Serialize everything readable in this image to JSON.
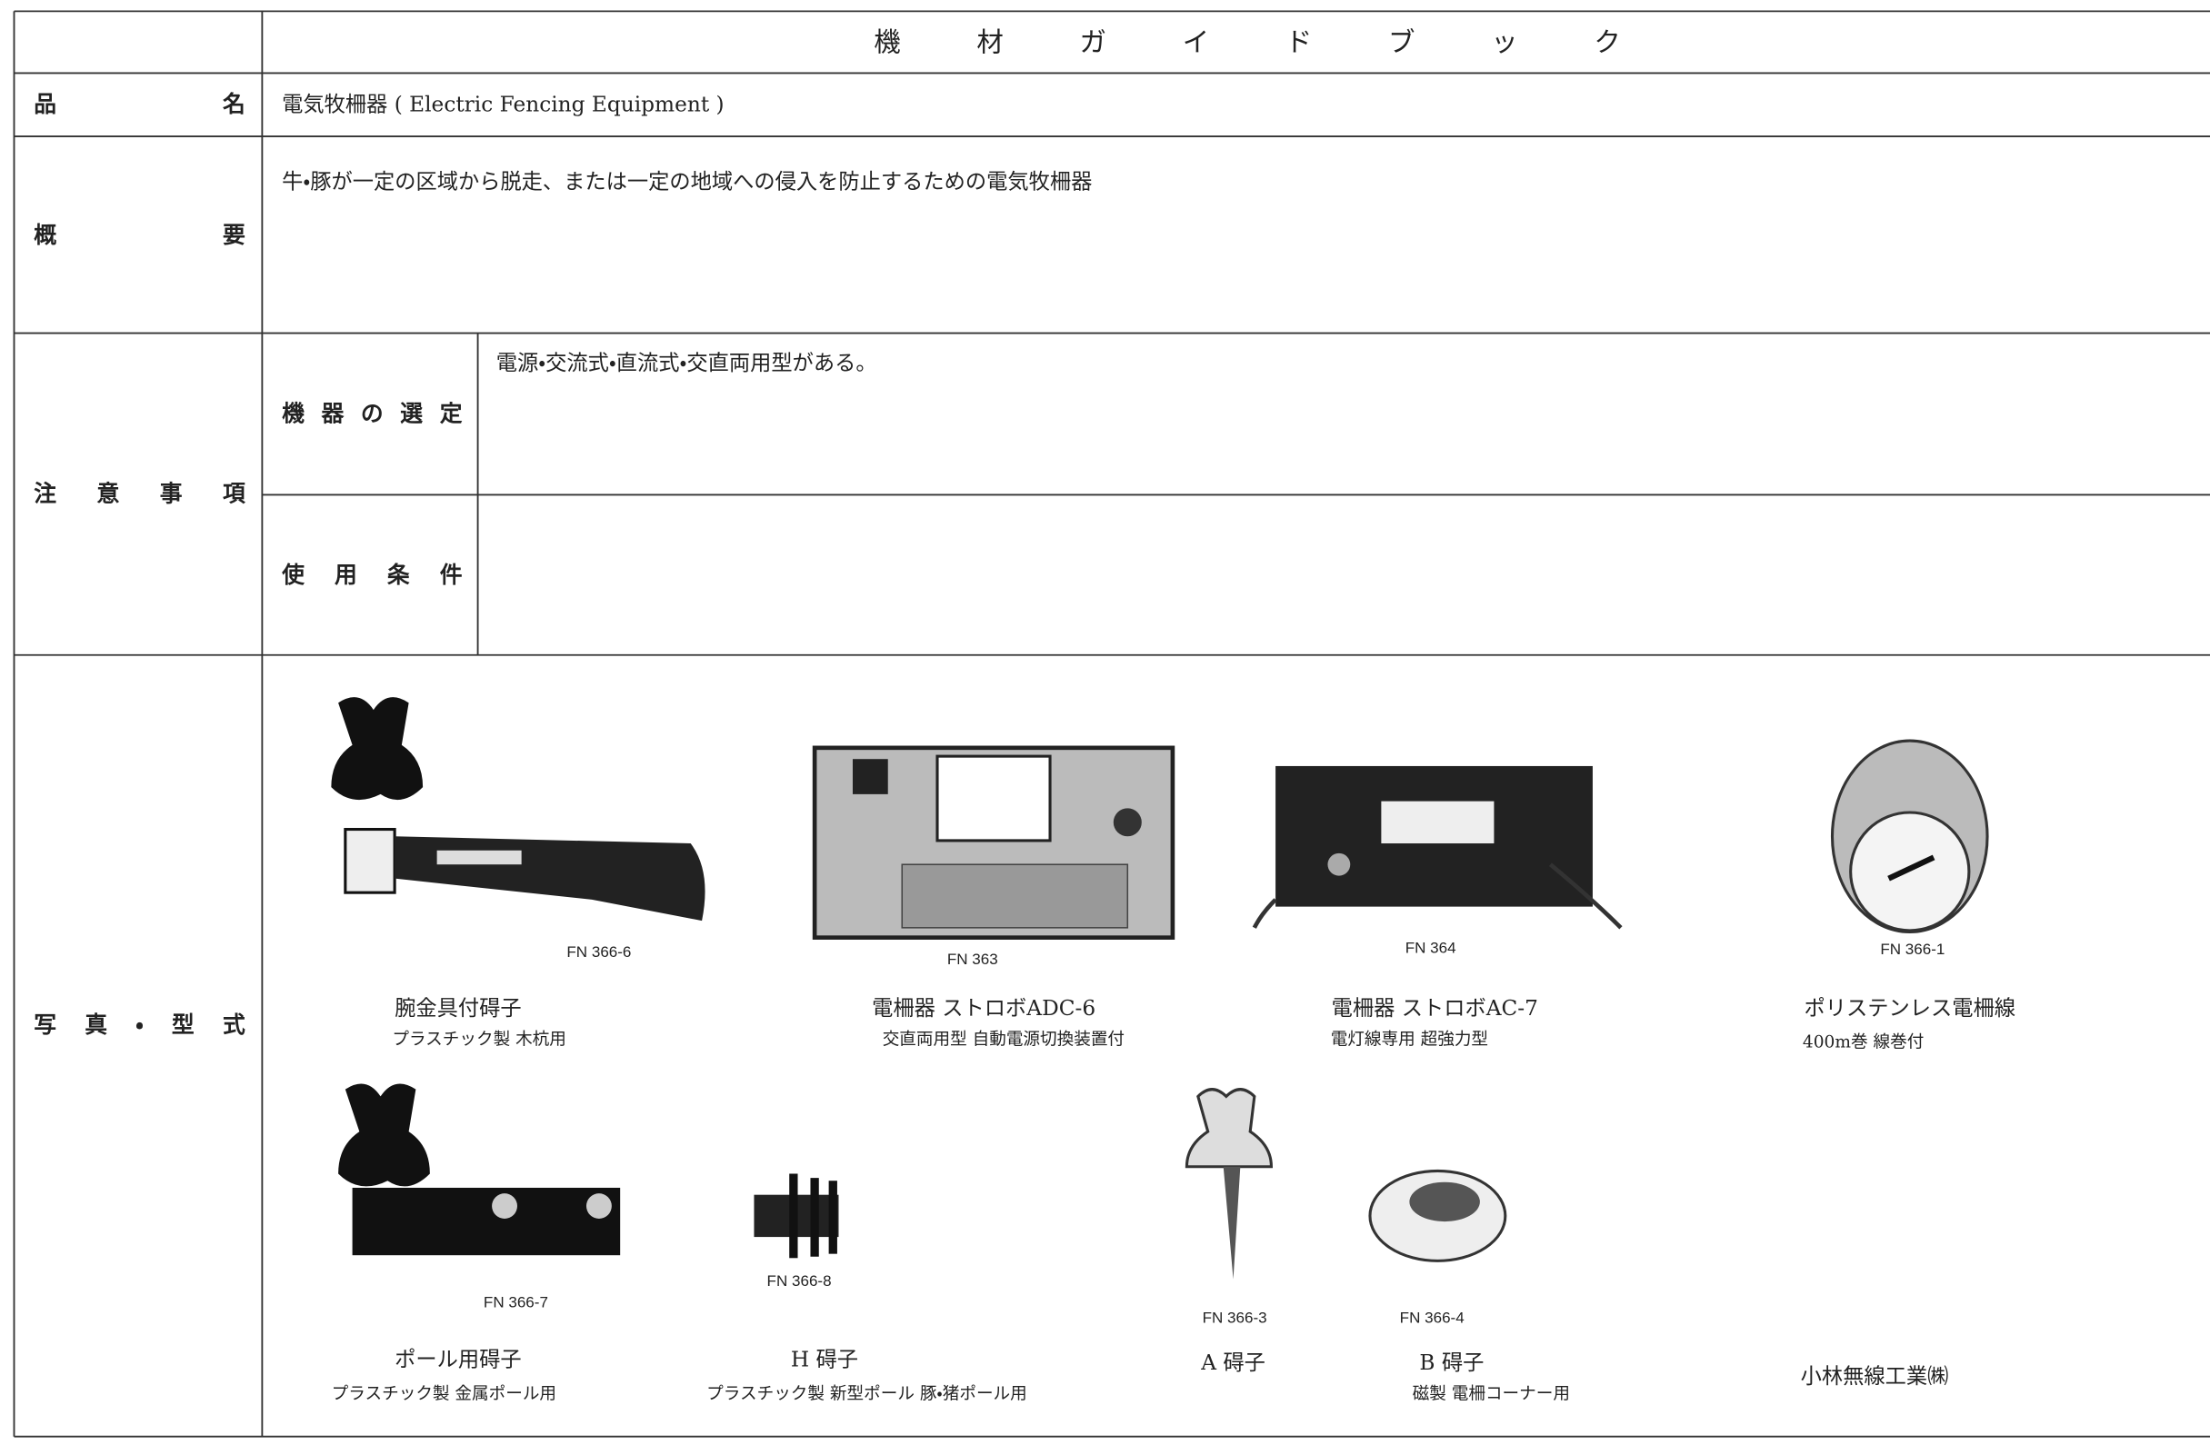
{
  "header": {
    "title": "機材ガイドブック"
  },
  "product_name": {
    "label": "品名",
    "value": "電気牧柵器 ( Electric Fencing Equipment )"
  },
  "summary": {
    "label": "概要",
    "value": "牛・豚が一定の区域から脱走、または一定の地域への侵入を防止するための電気牧柵器"
  },
  "notes": {
    "label": "注意事項",
    "selection": {
      "label": "機器の選定",
      "value": "電源・交流式・直流式・交直両用型がある。"
    },
    "conditions": {
      "label": "使用条件"
    }
  },
  "photos": {
    "label": "写真・型式",
    "items": [
      {
        "model": "FN 366-6",
        "name": "腕金具付碍子",
        "description": "プラスチック製 木杭用"
      },
      {
        "model": "FN 363",
        "name": "電柵器 ストロボADC-6",
        "description": "交直両用型 自動電源切換装置付"
      },
      {
        "model": "FN 364",
        "name": "電柵器 ストロボAC-7",
        "description": "電灯線専用 超強力型"
      },
      {
        "model": "FN 366-1",
        "name": "ポリステンレス電柵線",
        "description": "400m巻 線巻付"
      },
      {
        "model": "FN 366-7",
        "name": "ポール用碍子",
        "description": "プラスチック製 金属ポール用"
      },
      {
        "model": "FN 366-8",
        "name": "H 碍子",
        "description": "プラスチック製 新型ポール 豚・猪ポール用"
      },
      {
        "model": "FN 366-3",
        "name": "A 碍子"
      },
      {
        "model": "FN 366-4",
        "name": "B 碍子",
        "description": "磁製 電柵コーナー用"
      }
    ],
    "manufacturer": "小林無線工業㈱"
  }
}
